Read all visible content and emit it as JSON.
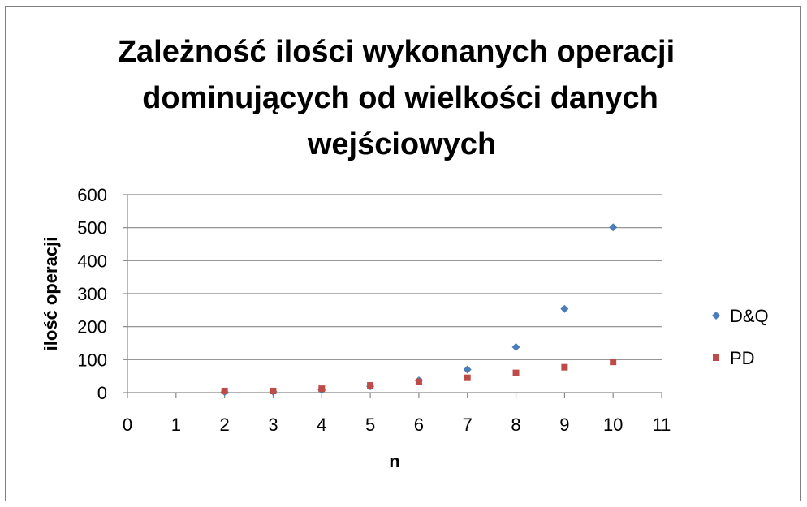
{
  "chart_data": {
    "type": "scatter",
    "title_lines": [
      "Zależność ilości wykonanych operacji",
      "dominujących od wielkości danych",
      "wejściowych"
    ],
    "xlabel": "n",
    "ylabel": "ilość operacji",
    "xlim": [
      0,
      11
    ],
    "ylim": [
      0,
      600
    ],
    "x_ticks": [
      0,
      1,
      2,
      3,
      4,
      5,
      6,
      7,
      8,
      9,
      10,
      11
    ],
    "y_ticks": [
      0,
      100,
      200,
      300,
      400,
      500,
      600
    ],
    "grid": "horizontal",
    "legend_position": "right",
    "series": [
      {
        "name": "D&Q",
        "color": "#4a7ebb",
        "marker": "diamond",
        "points": [
          {
            "x": 2,
            "y": 2
          },
          {
            "x": 3,
            "y": 3
          },
          {
            "x": 4,
            "y": 8
          },
          {
            "x": 5,
            "y": 19
          },
          {
            "x": 6,
            "y": 37
          },
          {
            "x": 7,
            "y": 70
          },
          {
            "x": 8,
            "y": 138
          },
          {
            "x": 9,
            "y": 254
          },
          {
            "x": 10,
            "y": 501
          }
        ]
      },
      {
        "name": "PD",
        "color": "#be4b48",
        "marker": "square",
        "points": [
          {
            "x": 2,
            "y": 5
          },
          {
            "x": 3,
            "y": 5
          },
          {
            "x": 4,
            "y": 12
          },
          {
            "x": 5,
            "y": 22
          },
          {
            "x": 6,
            "y": 33
          },
          {
            "x": 7,
            "y": 45
          },
          {
            "x": 8,
            "y": 60
          },
          {
            "x": 9,
            "y": 77
          },
          {
            "x": 10,
            "y": 93
          }
        ]
      }
    ]
  }
}
